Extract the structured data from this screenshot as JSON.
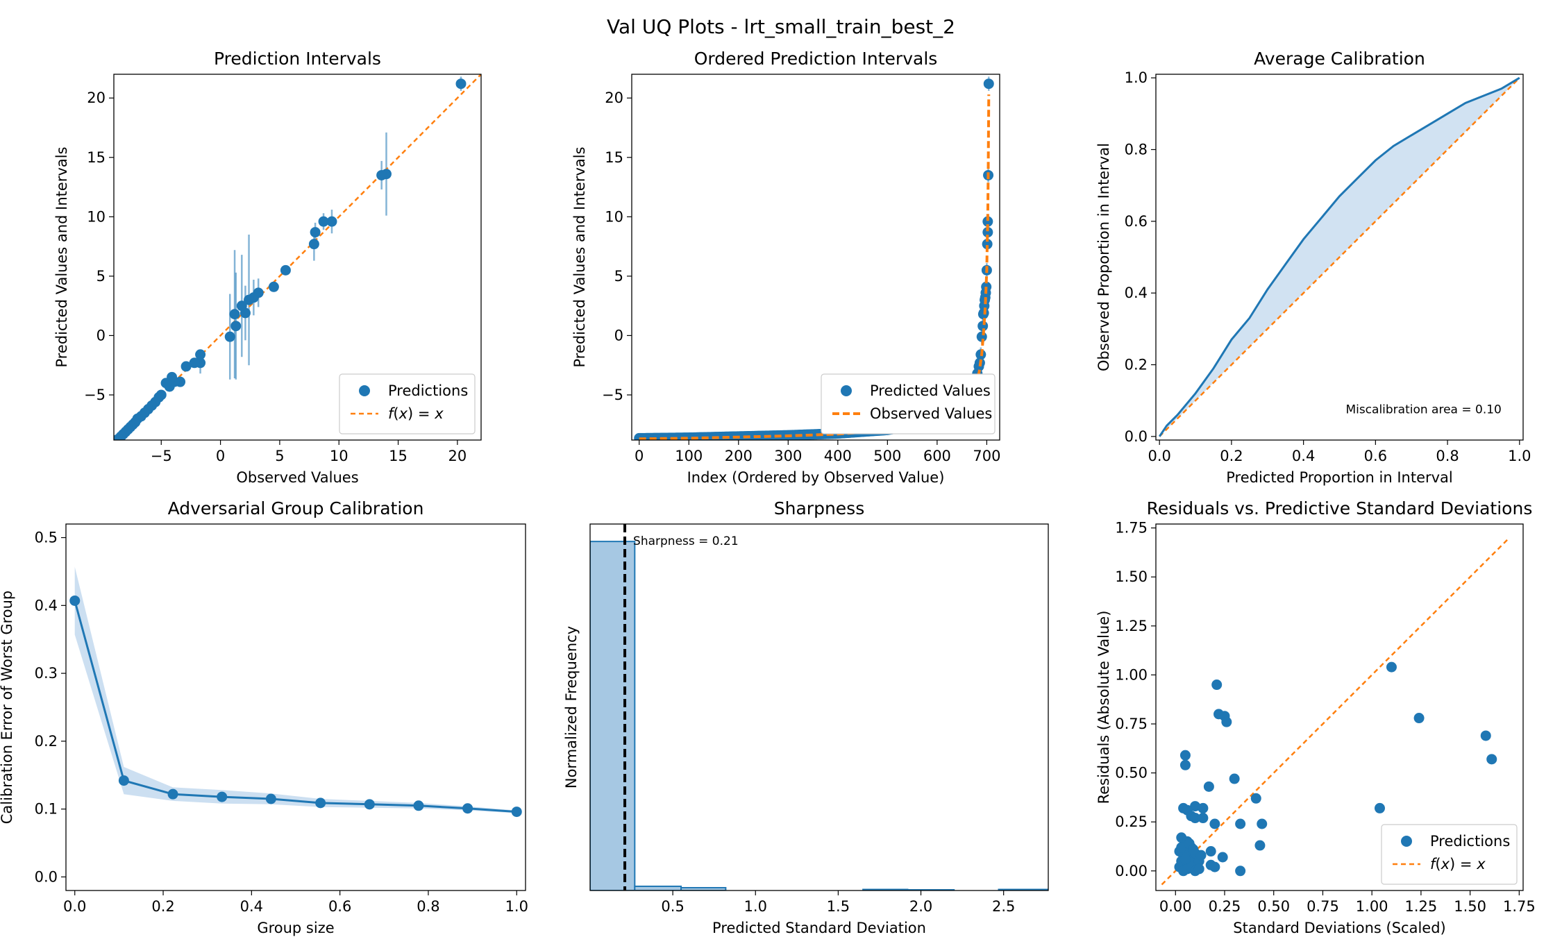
{
  "suptitle": "Val UQ Plots - lrt_small_train_best_2",
  "colors": {
    "blue": "#1f77b4",
    "orange": "#ff7f0e",
    "fill": "#c6dbef",
    "hist": "#a6c8e3",
    "black": "#000000"
  },
  "chart_data": [
    {
      "id": "pi",
      "type": "scatter",
      "title": "Prediction Intervals",
      "xlabel": "Observed Values",
      "ylabel": "Predicted Values and Intervals",
      "xlim": [
        -9.0,
        22.0
      ],
      "ylim": [
        -8.8,
        22.0
      ],
      "xticks": [
        -5,
        0,
        5,
        10,
        15,
        20
      ],
      "xtick_labels": [
        "−5",
        "0",
        "5",
        "10",
        "15",
        "20"
      ],
      "yticks": [
        -5,
        0,
        5,
        10,
        15,
        20
      ],
      "ytick_labels": [
        "−5",
        "0",
        "5",
        "10",
        "15",
        "20"
      ],
      "legend": [
        "Predictions",
        "f(x) = x"
      ],
      "legend_loc": "lower-right",
      "points": [
        [
          20.3,
          21.2,
          0.6
        ],
        [
          14.0,
          13.6,
          3.5
        ],
        [
          13.6,
          13.5,
          1.2
        ],
        [
          9.4,
          9.6,
          1.0
        ],
        [
          8.7,
          9.6,
          0.7
        ],
        [
          8.0,
          8.7,
          0.8
        ],
        [
          7.9,
          7.7,
          1.4
        ],
        [
          5.5,
          5.5,
          0.4
        ],
        [
          4.5,
          4.1,
          0.3
        ],
        [
          3.2,
          3.6,
          1.2
        ],
        [
          2.8,
          3.2,
          1.5
        ],
        [
          2.4,
          3.0,
          5.5
        ],
        [
          2.1,
          1.9,
          2.3
        ],
        [
          1.8,
          2.5,
          4.3
        ],
        [
          1.3,
          0.8,
          4.5
        ],
        [
          1.2,
          1.8,
          5.4
        ],
        [
          0.8,
          -0.1,
          3.6
        ],
        [
          -1.7,
          -2.3,
          0.9
        ],
        [
          -1.7,
          -1.6,
          0.4
        ],
        [
          -2.2,
          -2.3,
          0.3
        ],
        [
          -2.9,
          -2.6,
          0.3
        ],
        [
          -3.4,
          -3.9,
          0.3
        ],
        [
          -3.9,
          -3.9,
          0.3
        ],
        [
          -4.1,
          -3.5,
          0.3
        ],
        [
          -4.3,
          -4.3,
          0.3
        ],
        [
          -4.6,
          -4.0,
          0.2
        ],
        [
          -5.0,
          -5.0,
          0.3
        ],
        [
          -5.2,
          -5.2,
          0.3
        ],
        [
          -5.5,
          -5.6,
          0.2
        ],
        [
          -5.8,
          -5.9,
          0.2
        ],
        [
          -6.1,
          -6.2,
          0.2
        ],
        [
          -6.4,
          -6.5,
          0.2
        ],
        [
          -6.7,
          -6.8,
          0.2
        ],
        [
          -7.0,
          -7.0,
          0.2
        ],
        [
          -7.2,
          -7.3,
          0.2
        ],
        [
          -7.4,
          -7.5,
          0.2
        ],
        [
          -7.6,
          -7.7,
          0.2
        ],
        [
          -7.8,
          -7.9,
          0.1
        ],
        [
          -8.0,
          -8.1,
          0.1
        ],
        [
          -8.2,
          -8.3,
          0.1
        ],
        [
          -8.4,
          -8.5,
          0.1
        ],
        [
          -8.6,
          -8.7,
          0.1
        ],
        [
          -8.8,
          -8.8,
          0.1
        ]
      ],
      "line": [
        [
          -9.0,
          -9.0
        ],
        [
          22.0,
          22.0
        ]
      ]
    },
    {
      "id": "opi",
      "type": "scatter",
      "title": "Ordered Prediction Intervals",
      "xlabel": "Index (Ordered by Observed Value)",
      "ylabel": "Predicted Values and Intervals",
      "xlim": [
        -15,
        726
      ],
      "ylim": [
        -8.8,
        22.0
      ],
      "xticks": [
        0,
        100,
        200,
        300,
        400,
        500,
        600,
        700
      ],
      "xtick_labels": [
        "0",
        "100",
        "200",
        "300",
        "400",
        "500",
        "600",
        "700"
      ],
      "yticks": [
        -5,
        0,
        5,
        10,
        15,
        20
      ],
      "ytick_labels": [
        "−5",
        "0",
        "5",
        "10",
        "15",
        "20"
      ],
      "legend": [
        "Predicted Values",
        "Observed Values"
      ],
      "legend_loc": "lower-right",
      "n_points": 704,
      "observed_curve": [
        [
          0,
          -8.7
        ],
        [
          100,
          -8.65
        ],
        [
          200,
          -8.55
        ],
        [
          300,
          -8.45
        ],
        [
          400,
          -8.3
        ],
        [
          500,
          -8.0
        ],
        [
          600,
          -7.3
        ],
        [
          650,
          -6.3
        ],
        [
          675,
          -4.8
        ],
        [
          685,
          -3.0
        ],
        [
          690,
          -1.5
        ],
        [
          694,
          0.5
        ],
        [
          697,
          2.5
        ],
        [
          699,
          4.5
        ],
        [
          700,
          5.5
        ],
        [
          701,
          8.0
        ],
        [
          702,
          9.6
        ],
        [
          703,
          13.8
        ],
        [
          704,
          20.3
        ]
      ],
      "predicted_tail": [
        [
          640,
          -6.9
        ],
        [
          660,
          -5.8
        ],
        [
          670,
          -5.0
        ],
        [
          675,
          -4.5
        ],
        [
          678,
          -3.8
        ],
        [
          681,
          -3.2
        ],
        [
          684,
          -2.6
        ],
        [
          686,
          -2.3
        ],
        [
          688,
          -1.6
        ],
        [
          690,
          -0.1
        ],
        [
          692,
          0.8
        ],
        [
          693,
          1.8
        ],
        [
          694,
          1.9
        ],
        [
          695,
          2.5
        ],
        [
          696,
          3.0
        ],
        [
          697,
          3.2
        ],
        [
          698,
          3.6
        ],
        [
          699,
          4.1
        ],
        [
          700,
          5.5
        ],
        [
          701,
          7.7
        ],
        [
          702,
          8.7
        ],
        [
          702,
          9.6
        ],
        [
          703,
          13.5
        ],
        [
          704,
          21.2
        ]
      ]
    },
    {
      "id": "cal",
      "type": "line",
      "title": "Average Calibration",
      "xlabel": "Predicted Proportion in Interval",
      "ylabel": "Observed Proportion in Interval",
      "xlim": [
        -0.01,
        1.01
      ],
      "ylim": [
        -0.01,
        1.01
      ],
      "xticks": [
        0.0,
        0.2,
        0.4,
        0.6,
        0.8,
        1.0
      ],
      "xtick_labels": [
        "0.0",
        "0.2",
        "0.4",
        "0.6",
        "0.8",
        "1.0"
      ],
      "yticks": [
        0.0,
        0.2,
        0.4,
        0.6,
        0.8,
        1.0
      ],
      "ytick_labels": [
        "0.0",
        "0.2",
        "0.4",
        "0.6",
        "0.8",
        "1.0"
      ],
      "annotation": "Miscalibration area = 0.10",
      "curve": [
        [
          0,
          0
        ],
        [
          0.02,
          0.03
        ],
        [
          0.05,
          0.06
        ],
        [
          0.1,
          0.12
        ],
        [
          0.15,
          0.19
        ],
        [
          0.2,
          0.27
        ],
        [
          0.25,
          0.33
        ],
        [
          0.3,
          0.41
        ],
        [
          0.35,
          0.48
        ],
        [
          0.4,
          0.55
        ],
        [
          0.45,
          0.61
        ],
        [
          0.5,
          0.67
        ],
        [
          0.55,
          0.72
        ],
        [
          0.6,
          0.77
        ],
        [
          0.65,
          0.81
        ],
        [
          0.7,
          0.84
        ],
        [
          0.75,
          0.87
        ],
        [
          0.8,
          0.9
        ],
        [
          0.85,
          0.93
        ],
        [
          0.9,
          0.95
        ],
        [
          0.95,
          0.97
        ],
        [
          1.0,
          1.0
        ]
      ]
    },
    {
      "id": "agc",
      "type": "line",
      "title": "Adversarial Group Calibration",
      "xlabel": "Group size",
      "ylabel": "Calibration Error of Worst Group",
      "xlim": [
        -0.02,
        1.02
      ],
      "ylim": [
        -0.02,
        0.52
      ],
      "xticks": [
        0.0,
        0.2,
        0.4,
        0.6,
        0.8,
        1.0
      ],
      "xtick_labels": [
        "0.0",
        "0.2",
        "0.4",
        "0.6",
        "0.8",
        "1.0"
      ],
      "yticks": [
        0.0,
        0.1,
        0.2,
        0.3,
        0.4,
        0.5
      ],
      "ytick_labels": [
        "0.0",
        "0.1",
        "0.2",
        "0.3",
        "0.4",
        "0.5"
      ],
      "x": [
        0.0,
        0.111,
        0.222,
        0.333,
        0.444,
        0.556,
        0.667,
        0.778,
        0.889,
        1.0
      ],
      "y": [
        0.407,
        0.142,
        0.122,
        0.118,
        0.115,
        0.109,
        0.107,
        0.105,
        0.101,
        0.096
      ],
      "err": [
        0.05,
        0.02,
        0.01,
        0.01,
        0.008,
        0.006,
        0.005,
        0.004,
        0.003,
        0.002
      ]
    },
    {
      "id": "sharp",
      "type": "bar",
      "title": "Sharpness",
      "xlabel": "Predicted Standard Deviation",
      "ylabel": "Normalized Frequency",
      "xlim": [
        0.0,
        2.77
      ],
      "ylim": [
        0.0,
        1.05
      ],
      "xticks": [
        0.5,
        1.0,
        1.5,
        2.0,
        2.5
      ],
      "xtick_labels": [
        "0.5",
        "1.0",
        "1.5",
        "2.0",
        "2.5"
      ],
      "annotation": "Sharpness = 0.21",
      "sharpness": 0.21,
      "bin_edges": [
        0.0,
        0.27,
        0.55,
        0.82,
        1.1,
        1.37,
        1.65,
        1.92,
        2.2,
        2.47,
        2.77
      ],
      "values": [
        1.0,
        0.012,
        0.008,
        0.0,
        0.0,
        0.0,
        0.003,
        0.002,
        0.0,
        0.003
      ]
    },
    {
      "id": "res",
      "type": "scatter",
      "title": "Residuals vs. Predictive Standard Deviations",
      "xlabel": "Standard Deviations (Scaled)",
      "ylabel": "Residuals (Absolute Value)",
      "xlim": [
        -0.1,
        1.77
      ],
      "ylim": [
        -0.1,
        1.77
      ],
      "xticks": [
        0.0,
        0.25,
        0.5,
        0.75,
        1.0,
        1.25,
        1.5,
        1.75
      ],
      "xtick_labels": [
        "0.00",
        "0.25",
        "0.50",
        "0.75",
        "1.00",
        "1.25",
        "1.50",
        "1.75"
      ],
      "yticks": [
        0.0,
        0.25,
        0.5,
        0.75,
        1.0,
        1.25,
        1.5,
        1.75
      ],
      "ytick_labels": [
        "0.00",
        "0.25",
        "0.50",
        "0.75",
        "1.00",
        "1.25",
        "1.50",
        "1.75"
      ],
      "legend": [
        "Predictions",
        "f(x) = x"
      ],
      "legend_loc": "lower-right",
      "points": [
        [
          0.21,
          0.95
        ],
        [
          0.22,
          0.8
        ],
        [
          0.25,
          0.79
        ],
        [
          0.26,
          0.76
        ],
        [
          0.05,
          0.59
        ],
        [
          0.05,
          0.54
        ],
        [
          0.3,
          0.47
        ],
        [
          0.17,
          0.43
        ],
        [
          0.41,
          0.37
        ],
        [
          0.1,
          0.33
        ],
        [
          0.04,
          0.32
        ],
        [
          0.06,
          0.31
        ],
        [
          0.14,
          0.32
        ],
        [
          0.08,
          0.28
        ],
        [
          0.1,
          0.27
        ],
        [
          0.14,
          0.27
        ],
        [
          0.2,
          0.24
        ],
        [
          0.33,
          0.24
        ],
        [
          0.44,
          0.24
        ],
        [
          0.43,
          0.13
        ],
        [
          0.03,
          0.17
        ],
        [
          0.06,
          0.15
        ],
        [
          0.18,
          0.1
        ],
        [
          0.24,
          0.07
        ],
        [
          0.18,
          0.03
        ],
        [
          0.2,
          0.02
        ],
        [
          0.33,
          0.0
        ],
        [
          1.1,
          1.04
        ],
        [
          1.24,
          0.78
        ],
        [
          1.58,
          0.69
        ],
        [
          1.61,
          0.57
        ],
        [
          1.04,
          0.32
        ],
        [
          0.02,
          0.02
        ],
        [
          0.03,
          0.05
        ],
        [
          0.04,
          0.08
        ],
        [
          0.05,
          0.1
        ],
        [
          0.06,
          0.04
        ],
        [
          0.07,
          0.07
        ],
        [
          0.08,
          0.12
        ],
        [
          0.09,
          0.06
        ],
        [
          0.1,
          0.09
        ],
        [
          0.11,
          0.03
        ],
        [
          0.12,
          0.05
        ],
        [
          0.13,
          0.08
        ],
        [
          0.02,
          0.1
        ],
        [
          0.04,
          0.0
        ],
        [
          0.06,
          0.01
        ],
        [
          0.08,
          0.02
        ],
        [
          0.1,
          0.0
        ],
        [
          0.12,
          0.01
        ],
        [
          0.03,
          0.12
        ],
        [
          0.05,
          0.06
        ],
        [
          0.07,
          0.14
        ],
        [
          0.09,
          0.11
        ]
      ],
      "line": [
        [
          -0.07,
          -0.07
        ],
        [
          1.69,
          1.69
        ]
      ]
    }
  ]
}
